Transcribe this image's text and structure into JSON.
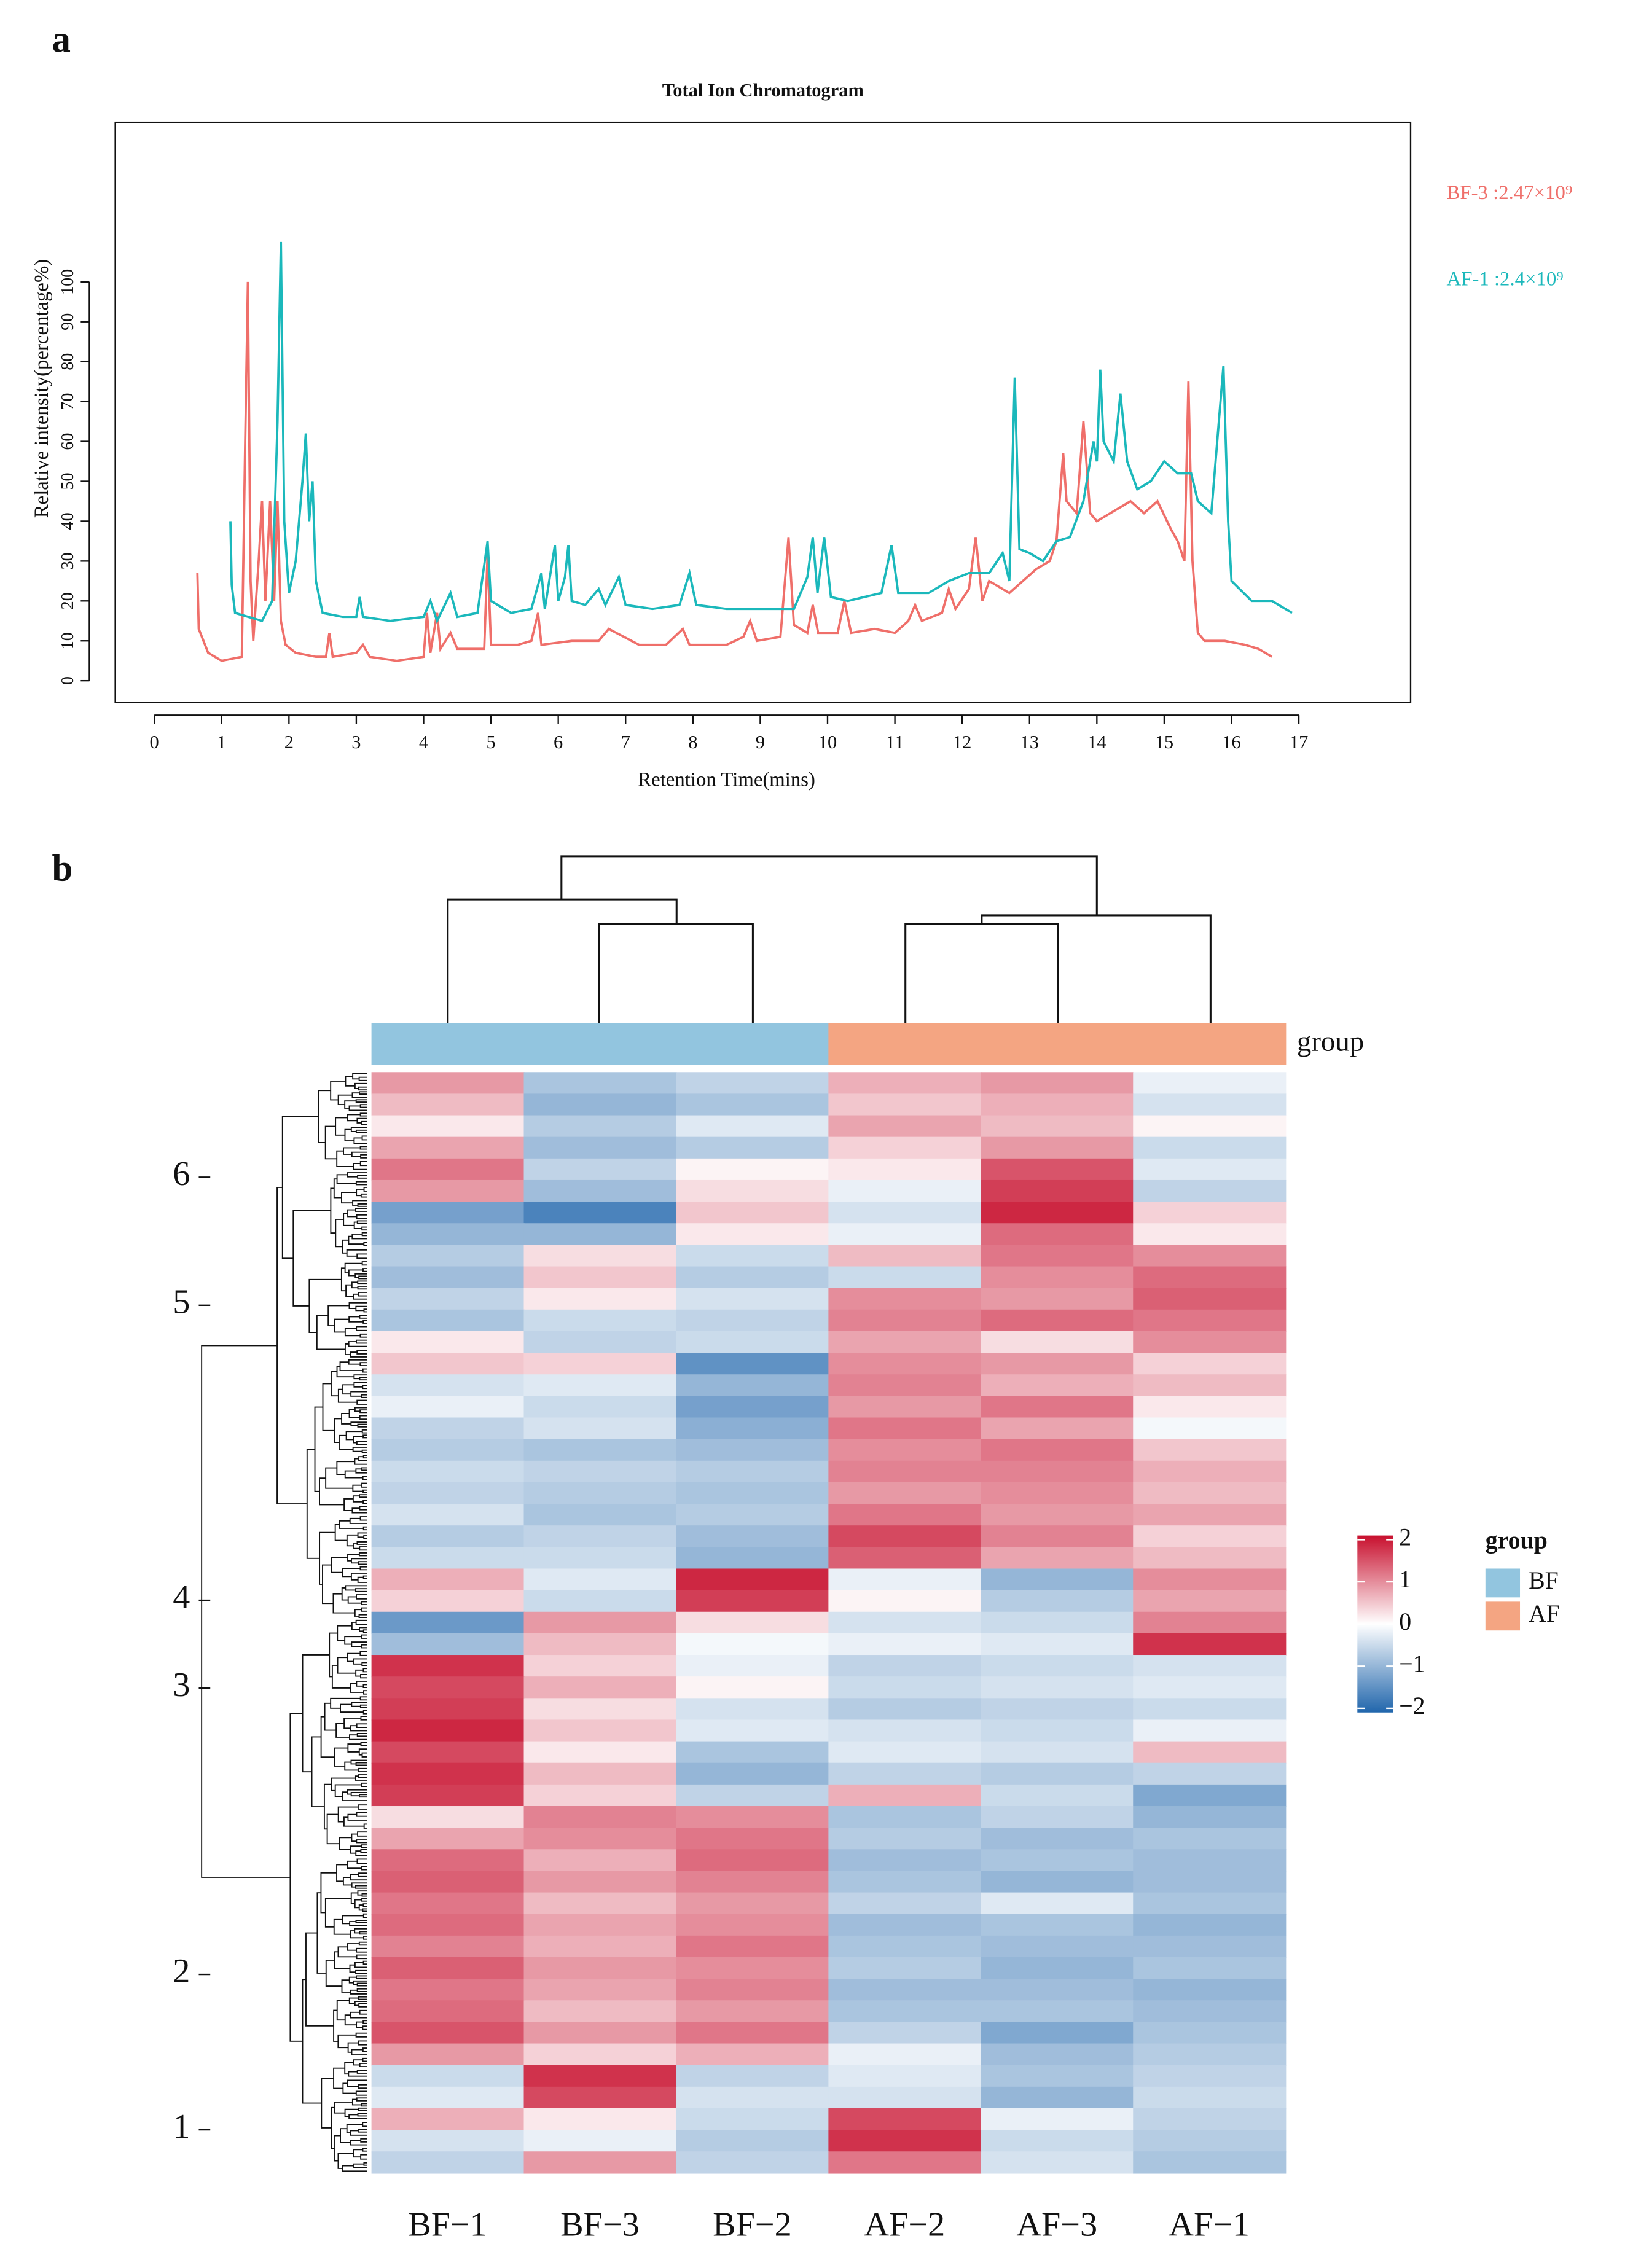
{
  "chart_data": [
    {
      "type": "line",
      "panel": "a",
      "title": "Total Ion Chromatogram",
      "xlabel": "Retention Time(mins)",
      "ylabel": "Relative intensity(percentage%)",
      "xlim": [
        -0.58,
        18.66
      ],
      "ylim": [
        -5.4,
        140
      ],
      "xticks": [
        0,
        1,
        2,
        3,
        4,
        5,
        6,
        7,
        8,
        9,
        10,
        11,
        12,
        13,
        14,
        15,
        16,
        17
      ],
      "yticks": [
        0,
        10,
        20,
        30,
        40,
        50,
        60,
        70,
        80,
        90,
        100
      ],
      "series": [
        {
          "name": "BF-3 :2.47×10⁹",
          "color": "#ef6f6a",
          "x": [
            0.64,
            0.66,
            0.8,
            1.0,
            1.3,
            1.35,
            1.39,
            1.43,
            1.47,
            1.55,
            1.6,
            1.65,
            1.72,
            1.78,
            1.83,
            1.88,
            1.95,
            2.1,
            2.4,
            2.55,
            2.6,
            2.65,
            3.0,
            3.1,
            3.2,
            3.6,
            4.0,
            4.05,
            4.1,
            4.2,
            4.25,
            4.4,
            4.5,
            4.9,
            4.95,
            5.0,
            5.4,
            5.6,
            5.7,
            5.75,
            6.2,
            6.6,
            6.75,
            7.2,
            7.6,
            7.85,
            7.95,
            8.5,
            8.75,
            8.85,
            8.95,
            9.3,
            9.42,
            9.5,
            9.7,
            9.78,
            9.86,
            10.15,
            10.25,
            10.35,
            10.7,
            11.0,
            11.2,
            11.3,
            11.4,
            11.7,
            11.8,
            11.9,
            12.1,
            12.2,
            12.3,
            12.4,
            12.7,
            12.9,
            13.1,
            13.3,
            13.4,
            13.5,
            13.55,
            13.7,
            13.8,
            13.9,
            14.0,
            14.2,
            14.5,
            14.7,
            14.9,
            15.1,
            15.2,
            15.3,
            15.36,
            15.42,
            15.5,
            15.6,
            15.9,
            16.2,
            16.4,
            16.6
          ],
          "values": [
            27,
            13,
            7,
            5,
            6,
            60,
            100,
            25,
            10,
            30,
            45,
            20,
            45,
            20,
            45,
            15,
            9,
            7,
            6,
            6,
            12,
            6,
            7,
            9,
            6,
            5,
            6,
            17,
            7,
            17,
            8,
            12,
            8,
            8,
            32,
            9,
            9,
            10,
            17,
            9,
            10,
            10,
            13,
            9,
            9,
            13,
            9,
            9,
            11,
            15,
            10,
            11,
            36,
            14,
            12,
            19,
            12,
            12,
            20,
            12,
            13,
            12,
            15,
            19,
            15,
            17,
            23,
            18,
            23,
            36,
            20,
            25,
            22,
            25,
            28,
            30,
            35,
            57,
            45,
            42,
            65,
            42,
            40,
            42,
            45,
            42,
            45,
            38,
            35,
            30,
            75,
            30,
            12,
            10,
            10,
            9,
            8,
            6
          ]
        },
        {
          "name": "AF-1 :2.4×10⁹",
          "color": "#1bb8bb",
          "x": [
            1.13,
            1.15,
            1.2,
            1.4,
            1.6,
            1.75,
            1.83,
            1.88,
            1.93,
            2.0,
            2.1,
            2.2,
            2.25,
            2.3,
            2.35,
            2.4,
            2.5,
            2.8,
            3.0,
            3.05,
            3.1,
            3.5,
            4.0,
            4.1,
            4.2,
            4.4,
            4.5,
            4.8,
            4.9,
            4.95,
            5.0,
            5.3,
            5.6,
            5.75,
            5.8,
            5.95,
            6.0,
            6.1,
            6.15,
            6.2,
            6.4,
            6.6,
            6.7,
            6.9,
            7.0,
            7.4,
            7.8,
            7.95,
            8.05,
            8.5,
            9.0,
            9.5,
            9.7,
            9.78,
            9.85,
            9.95,
            10.05,
            10.3,
            10.8,
            10.95,
            11.05,
            11.5,
            11.8,
            12.1,
            12.4,
            12.6,
            12.7,
            12.78,
            12.85,
            13.0,
            13.2,
            13.4,
            13.6,
            13.8,
            13.95,
            14.0,
            14.05,
            14.1,
            14.25,
            14.35,
            14.45,
            14.6,
            14.8,
            15.0,
            15.2,
            15.4,
            15.5,
            15.7,
            15.88,
            15.95,
            16.0,
            16.3,
            16.6,
            16.9
          ],
          "values": [
            40,
            24,
            17,
            16,
            15,
            20,
            65,
            110,
            40,
            22,
            30,
            50,
            62,
            40,
            50,
            25,
            17,
            16,
            16,
            21,
            16,
            15,
            16,
            20,
            15,
            22,
            16,
            17,
            29,
            35,
            20,
            17,
            18,
            27,
            18,
            34,
            20,
            26,
            34,
            20,
            19,
            23,
            19,
            26,
            19,
            18,
            19,
            27,
            19,
            18,
            18,
            18,
            26,
            36,
            22,
            36,
            21,
            20,
            22,
            34,
            22,
            22,
            25,
            27,
            27,
            32,
            25,
            76,
            33,
            32,
            30,
            35,
            36,
            45,
            60,
            55,
            78,
            60,
            55,
            72,
            55,
            48,
            50,
            55,
            52,
            52,
            45,
            42,
            79,
            40,
            25,
            20,
            20,
            17
          ]
        }
      ]
    },
    {
      "type": "heatmap",
      "panel": "b",
      "categories": [
        "BF−1",
        "BF−3",
        "BF−2",
        "AF−2",
        "AF−3",
        "AF−1"
      ],
      "group_title": "group",
      "groups": [
        {
          "name": "BF",
          "color": "#92c5df"
        },
        {
          "name": "AF",
          "color": "#f4a582"
        }
      ],
      "column_groups": [
        "BF",
        "BF",
        "BF",
        "AF",
        "AF",
        "AF"
      ],
      "row_clusters": [
        6,
        5,
        4,
        3,
        2,
        1
      ],
      "zlim": [
        -2.1,
        2.1
      ],
      "zticks": [
        2,
        1,
        0,
        {
          "value": -1,
          "label": "−1"
        },
        {
          "value": -2,
          "label": "−2"
        }
      ],
      "colors": [
        "#2166ac",
        "#ffffff",
        "#c8102e"
      ],
      "z": [
        [
          0.9,
          -0.8,
          -0.6,
          0.7,
          0.9,
          -0.2
        ],
        [
          0.6,
          -1.0,
          -0.8,
          0.5,
          0.7,
          -0.4
        ],
        [
          0.2,
          -0.7,
          -0.3,
          0.8,
          0.6,
          0.1
        ],
        [
          0.8,
          -0.9,
          -0.7,
          0.4,
          0.9,
          -0.5
        ],
        [
          1.2,
          -0.6,
          0.1,
          0.2,
          1.5,
          -0.3
        ],
        [
          0.9,
          -0.9,
          0.3,
          -0.2,
          1.7,
          -0.6
        ],
        [
          -1.3,
          -1.7,
          0.5,
          -0.4,
          1.9,
          0.4
        ],
        [
          -1.0,
          -1.0,
          0.2,
          -0.2,
          1.3,
          0.2
        ],
        [
          -0.7,
          0.3,
          -0.5,
          0.6,
          1.2,
          1.0
        ],
        [
          -0.9,
          0.5,
          -0.7,
          -0.5,
          1.0,
          1.3
        ],
        [
          -0.6,
          0.2,
          -0.4,
          1.0,
          0.9,
          1.4
        ],
        [
          -0.8,
          -0.5,
          -0.6,
          1.1,
          1.3,
          1.2
        ],
        [
          0.2,
          -0.6,
          -0.5,
          0.8,
          0.3,
          1.0
        ],
        [
          0.5,
          0.4,
          -1.5,
          1.0,
          0.9,
          0.4
        ],
        [
          -0.4,
          -0.3,
          -1.0,
          1.1,
          0.7,
          0.6
        ],
        [
          -0.2,
          -0.5,
          -1.3,
          0.9,
          1.2,
          0.2
        ],
        [
          -0.6,
          -0.4,
          -1.1,
          1.2,
          0.8,
          -0.1
        ],
        [
          -0.7,
          -0.8,
          -0.9,
          1.0,
          1.2,
          0.5
        ],
        [
          -0.5,
          -0.6,
          -0.7,
          1.1,
          1.1,
          0.7
        ],
        [
          -0.6,
          -0.7,
          -0.8,
          0.9,
          1.0,
          0.6
        ],
        [
          -0.4,
          -0.8,
          -0.7,
          1.2,
          0.9,
          0.8
        ],
        [
          -0.7,
          -0.6,
          -0.9,
          1.6,
          1.1,
          0.4
        ],
        [
          -0.5,
          -0.5,
          -1.0,
          1.4,
          0.8,
          0.6
        ],
        [
          0.7,
          -0.3,
          1.9,
          -0.2,
          -1.0,
          1.0
        ],
        [
          0.4,
          -0.5,
          1.7,
          0.1,
          -0.7,
          0.8
        ],
        [
          -1.4,
          0.9,
          0.3,
          -0.4,
          -0.5,
          1.1
        ],
        [
          -0.9,
          0.6,
          -0.1,
          -0.2,
          -0.3,
          1.8
        ],
        [
          1.8,
          0.4,
          -0.2,
          -0.6,
          -0.5,
          -0.4
        ],
        [
          1.6,
          0.7,
          0.1,
          -0.5,
          -0.4,
          -0.3
        ],
        [
          1.7,
          0.3,
          -0.4,
          -0.7,
          -0.6,
          -0.5
        ],
        [
          1.9,
          0.5,
          -0.3,
          -0.4,
          -0.5,
          -0.2
        ],
        [
          1.6,
          0.2,
          -0.8,
          -0.3,
          -0.4,
          0.6
        ],
        [
          1.8,
          0.6,
          -1.0,
          -0.6,
          -0.7,
          -0.6
        ],
        [
          1.7,
          0.4,
          -0.6,
          0.7,
          -0.5,
          -1.2
        ],
        [
          0.3,
          1.1,
          1.0,
          -0.8,
          -0.6,
          -1.0
        ],
        [
          0.8,
          1.0,
          1.2,
          -0.7,
          -0.9,
          -0.8
        ],
        [
          1.3,
          0.7,
          1.3,
          -0.9,
          -0.8,
          -0.9
        ],
        [
          1.4,
          0.9,
          1.1,
          -0.8,
          -1.0,
          -0.9
        ],
        [
          1.2,
          0.6,
          0.9,
          -0.6,
          -0.3,
          -0.8
        ],
        [
          1.3,
          0.8,
          1.0,
          -0.9,
          -0.8,
          -1.0
        ],
        [
          1.1,
          0.7,
          1.2,
          -0.8,
          -0.9,
          -0.9
        ],
        [
          1.4,
          0.9,
          1.0,
          -0.7,
          -1.0,
          -0.8
        ],
        [
          1.2,
          0.8,
          1.1,
          -0.9,
          -0.9,
          -1.0
        ],
        [
          1.3,
          0.6,
          0.9,
          -0.8,
          -0.8,
          -0.9
        ],
        [
          1.5,
          0.9,
          1.2,
          -0.6,
          -1.2,
          -0.8
        ],
        [
          0.9,
          0.4,
          0.7,
          -0.2,
          -0.9,
          -0.7
        ],
        [
          -0.5,
          1.8,
          -0.6,
          -0.3,
          -0.8,
          -0.6
        ],
        [
          -0.3,
          1.6,
          -0.4,
          -0.4,
          -1.0,
          -0.5
        ],
        [
          0.7,
          0.2,
          -0.5,
          1.6,
          -0.2,
          -0.6
        ],
        [
          -0.4,
          -0.2,
          -0.7,
          1.8,
          -0.5,
          -0.7
        ],
        [
          -0.6,
          0.9,
          -0.6,
          1.2,
          -0.4,
          -0.8
        ]
      ]
    }
  ]
}
